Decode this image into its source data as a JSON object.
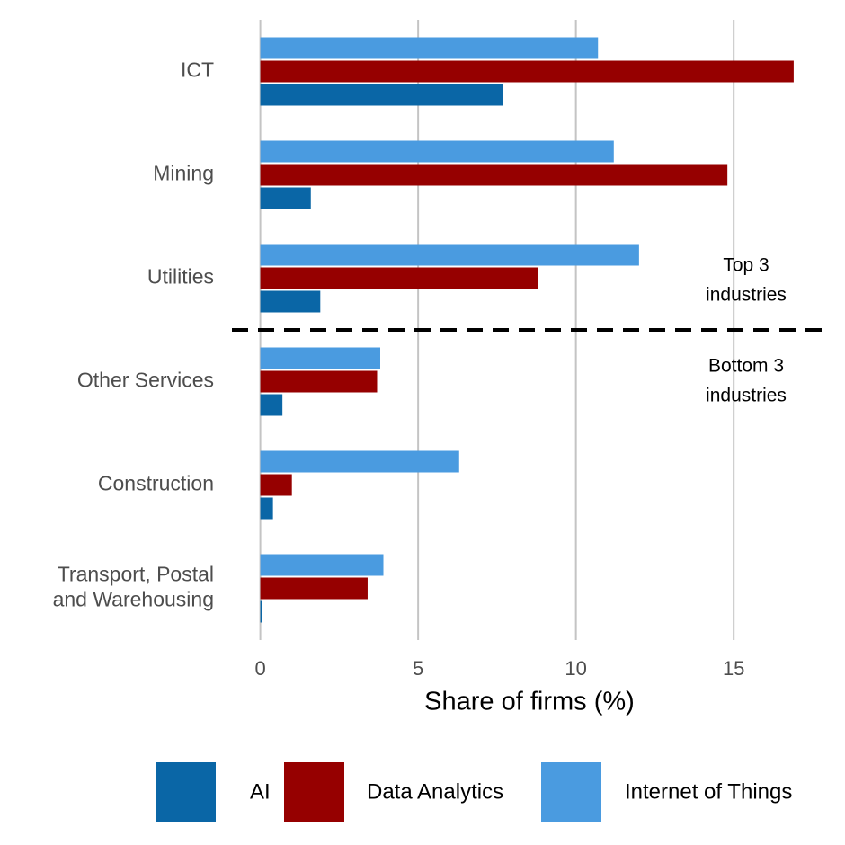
{
  "chart_data": {
    "type": "barh",
    "xlabel": "Share of firms (%)",
    "categories": [
      "ICT",
      "Mining",
      "Utilities",
      "Other Services",
      "Construction",
      "Transport, Postal\nand Warehousing"
    ],
    "series": [
      {
        "name": "AI",
        "color": "#0a66a6",
        "values": [
          7.7,
          1.6,
          1.9,
          0.7,
          0.4,
          0.05
        ]
      },
      {
        "name": "Data Analytics",
        "color": "#960000",
        "values": [
          16.9,
          14.8,
          8.8,
          3.7,
          1.0,
          3.4
        ]
      },
      {
        "name": "Internet of Things",
        "color": "#4a9be0",
        "values": [
          10.7,
          11.2,
          12.0,
          3.8,
          6.3,
          3.9
        ]
      }
    ],
    "xlim": [
      -0.9,
      17.9
    ],
    "xticks": [
      0,
      5,
      10,
      15
    ],
    "grid": true,
    "annotations": [
      [
        "Top 3",
        "industries"
      ],
      [
        "Bottom 3",
        "industries"
      ]
    ]
  }
}
